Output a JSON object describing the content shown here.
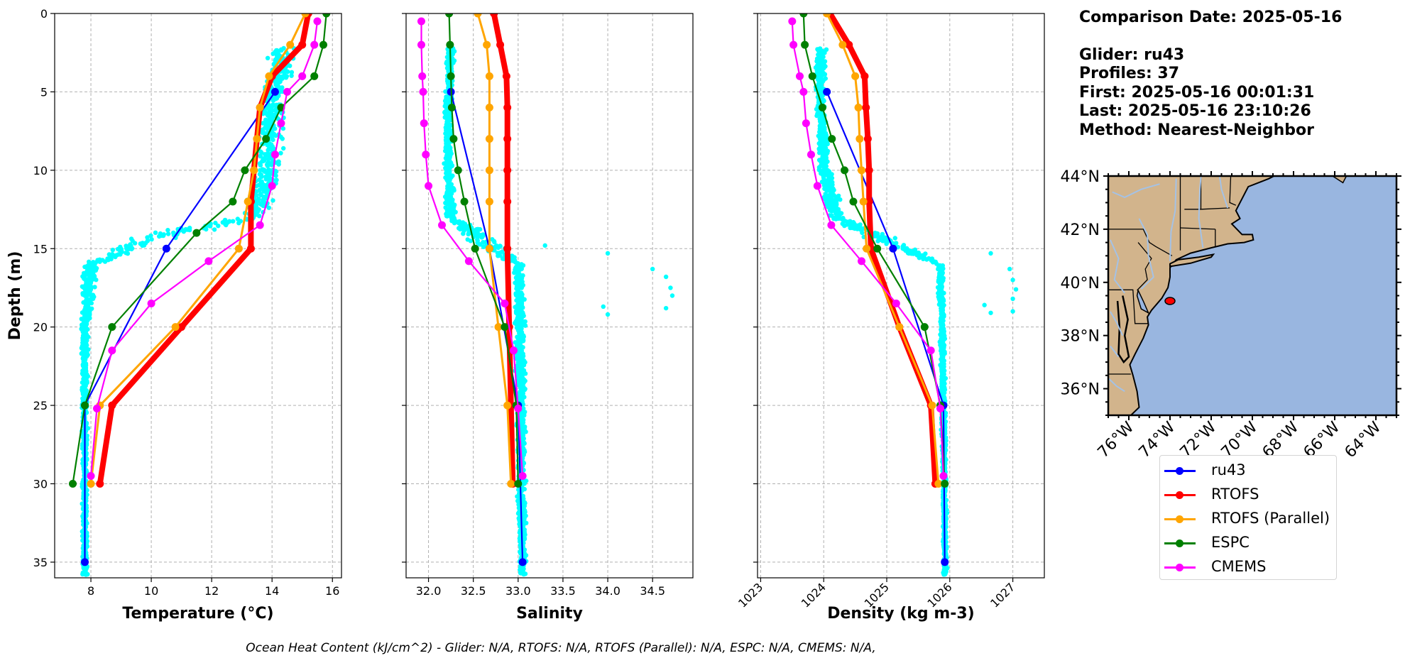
{
  "info": {
    "comparison_date": "Comparison Date: 2025-05-16",
    "glider": "Glider: ru43",
    "profiles": "Profiles: 37",
    "first": "First: 2025-05-16 00:01:31",
    "last": "Last: 2025-05-16 23:10:26",
    "method": "Method: Nearest-Neighbor"
  },
  "ohc_text": "Ocean Heat Content (kJ/cm^2) - Glider: N/A,  RTOFS: N/A,  RTOFS (Parallel): N/A,  ESPC: N/A,  CMEMS: N/A,",
  "colors": {
    "ru43": "#0000ff",
    "RTOFS": "#ff0000",
    "RTOFS (Parallel)": "#ffa500",
    "ESPC": "#008000",
    "CMEMS": "#ff00ff",
    "glider_points": "#00ffff",
    "land": "#d2b48c",
    "ocean": "#99b6e0",
    "rivers": "#a4c2e6"
  },
  "legend": [
    "ru43",
    "RTOFS",
    "RTOFS (Parallel)",
    "ESPC",
    "CMEMS"
  ],
  "chart_data": [
    {
      "type": "line",
      "xlabel": "Temperature (°C)",
      "ylabel": "Depth (m)",
      "xlim": [
        6.8,
        16.3
      ],
      "ylim": [
        36,
        0
      ],
      "xticks": [
        8,
        10,
        12,
        14,
        16
      ],
      "yticks": [
        0,
        5,
        10,
        15,
        20,
        25,
        30,
        35
      ],
      "grid": true,
      "series": [
        {
          "name": "ru43",
          "depth": [
            5,
            15,
            25,
            35
          ],
          "values": [
            14.1,
            10.5,
            7.8,
            7.8
          ]
        },
        {
          "name": "RTOFS",
          "depth": [
            0,
            2,
            4,
            6,
            8,
            10,
            12,
            15,
            20,
            25,
            30
          ],
          "values": [
            15.2,
            15.0,
            14.0,
            13.6,
            13.5,
            13.4,
            13.3,
            13.3,
            11.0,
            8.7,
            8.3
          ]
        },
        {
          "name": "RTOFS (Parallel)",
          "depth": [
            0,
            2,
            4,
            6,
            8,
            10,
            12,
            15,
            20,
            25,
            30
          ],
          "values": [
            15.1,
            14.6,
            13.9,
            13.6,
            13.5,
            13.4,
            13.2,
            12.9,
            10.8,
            8.3,
            8.0
          ]
        },
        {
          "name": "ESPC",
          "depth": [
            0,
            2,
            4,
            6,
            8,
            10,
            12,
            14,
            20,
            25,
            30
          ],
          "values": [
            15.8,
            15.7,
            15.4,
            14.3,
            13.8,
            13.1,
            12.7,
            11.5,
            8.7,
            7.8,
            7.4
          ]
        },
        {
          "name": "CMEMS",
          "depth": [
            0.5,
            2,
            4,
            5,
            7,
            9,
            11,
            13.5,
            15.8,
            18.5,
            21.5,
            25.2,
            29.5
          ],
          "values": [
            15.5,
            15.4,
            15.0,
            14.5,
            14.3,
            14.1,
            14.0,
            13.6,
            11.9,
            10.0,
            8.7,
            8.2,
            8.0
          ]
        }
      ]
    },
    {
      "type": "line",
      "xlabel": "Salinity",
      "ylabel": "",
      "xlim": [
        31.75,
        34.95
      ],
      "ylim": [
        36,
        0
      ],
      "xticks": [
        32.0,
        32.5,
        33.0,
        33.5,
        34.0,
        34.5
      ],
      "yticks": [
        0,
        5,
        10,
        15,
        20,
        25,
        30,
        35
      ],
      "grid": true,
      "series": [
        {
          "name": "ru43",
          "depth": [
            5,
            15,
            25,
            35
          ],
          "values": [
            32.25,
            32.68,
            33.0,
            33.05
          ]
        },
        {
          "name": "RTOFS",
          "depth": [
            0,
            2,
            4,
            6,
            8,
            10,
            12,
            15,
            20,
            25,
            30
          ],
          "values": [
            32.73,
            32.8,
            32.87,
            32.88,
            32.88,
            32.88,
            32.88,
            32.88,
            32.9,
            32.92,
            32.94
          ]
        },
        {
          "name": "RTOFS (Parallel)",
          "depth": [
            0,
            2,
            4,
            6,
            8,
            10,
            12,
            15,
            20,
            25,
            30
          ],
          "values": [
            32.55,
            32.65,
            32.68,
            32.68,
            32.68,
            32.68,
            32.68,
            32.68,
            32.78,
            32.88,
            32.92
          ]
        },
        {
          "name": "ESPC",
          "depth": [
            0,
            2,
            4,
            6,
            8,
            10,
            12,
            15,
            20,
            25,
            30
          ],
          "values": [
            32.23,
            32.24,
            32.25,
            32.26,
            32.28,
            32.33,
            32.4,
            32.52,
            32.85,
            32.98,
            33.0
          ]
        },
        {
          "name": "CMEMS",
          "depth": [
            0.5,
            2,
            4,
            5,
            7,
            9,
            11,
            13.5,
            15.8,
            18.5,
            21.5,
            25.2,
            29.5
          ],
          "values": [
            31.92,
            31.92,
            31.93,
            31.94,
            31.95,
            31.97,
            32.0,
            32.15,
            32.45,
            32.85,
            32.95,
            33.0,
            33.05
          ]
        }
      ]
    },
    {
      "type": "line",
      "xlabel": "Density (kg m-3)",
      "ylabel": "",
      "xlim": [
        1022.95,
        1027.5
      ],
      "ylim": [
        36,
        0
      ],
      "xticks": [
        1023,
        1024,
        1025,
        1026,
        1027
      ],
      "yticks": [
        0,
        5,
        10,
        15,
        20,
        25,
        30,
        35
      ],
      "grid": true,
      "series": [
        {
          "name": "ru43",
          "depth": [
            5,
            15,
            25,
            35
          ],
          "values": [
            1024.05,
            1025.1,
            1025.9,
            1025.92
          ]
        },
        {
          "name": "RTOFS",
          "depth": [
            0,
            2,
            4,
            6,
            8,
            10,
            12,
            15,
            20,
            25,
            30
          ],
          "values": [
            1024.1,
            1024.4,
            1024.65,
            1024.67,
            1024.7,
            1024.72,
            1024.72,
            1024.75,
            1025.2,
            1025.7,
            1025.77
          ]
        },
        {
          "name": "RTOFS (Parallel)",
          "depth": [
            0,
            2,
            4,
            6,
            8,
            10,
            12,
            15,
            20,
            25,
            30
          ],
          "values": [
            1024.05,
            1024.3,
            1024.5,
            1024.55,
            1024.57,
            1024.6,
            1024.63,
            1024.68,
            1025.2,
            1025.72,
            1025.82
          ]
        },
        {
          "name": "ESPC",
          "depth": [
            0,
            2,
            4,
            6,
            8,
            10,
            12,
            15,
            20,
            25,
            30
          ],
          "values": [
            1023.68,
            1023.7,
            1023.82,
            1023.98,
            1024.13,
            1024.33,
            1024.47,
            1024.85,
            1025.6,
            1025.85,
            1025.92
          ]
        },
        {
          "name": "CMEMS",
          "depth": [
            0.5,
            2,
            4,
            5,
            7,
            9,
            11,
            13.5,
            15.8,
            18.5,
            21.5,
            25.2,
            29.5
          ],
          "values": [
            1023.5,
            1023.52,
            1023.62,
            1023.68,
            1023.72,
            1023.8,
            1023.9,
            1024.12,
            1024.6,
            1025.15,
            1025.7,
            1025.85,
            1025.9
          ]
        }
      ]
    },
    {
      "type": "map",
      "lat_labels": [
        "44°N",
        "42°N",
        "40°N",
        "38°N",
        "36°N"
      ],
      "lat_values": [
        44,
        42,
        40,
        38,
        36
      ],
      "lon_labels": [
        "76°W",
        "74°W",
        "72°W",
        "70°W",
        "68°W",
        "66°W",
        "64°W"
      ],
      "lon_values": [
        -76,
        -74,
        -72,
        -70,
        -68,
        -66,
        -64
      ],
      "xlim": [
        -77,
        -63
      ],
      "ylim": [
        35,
        44
      ],
      "glider_location": [
        -74.0,
        39.3
      ]
    }
  ]
}
